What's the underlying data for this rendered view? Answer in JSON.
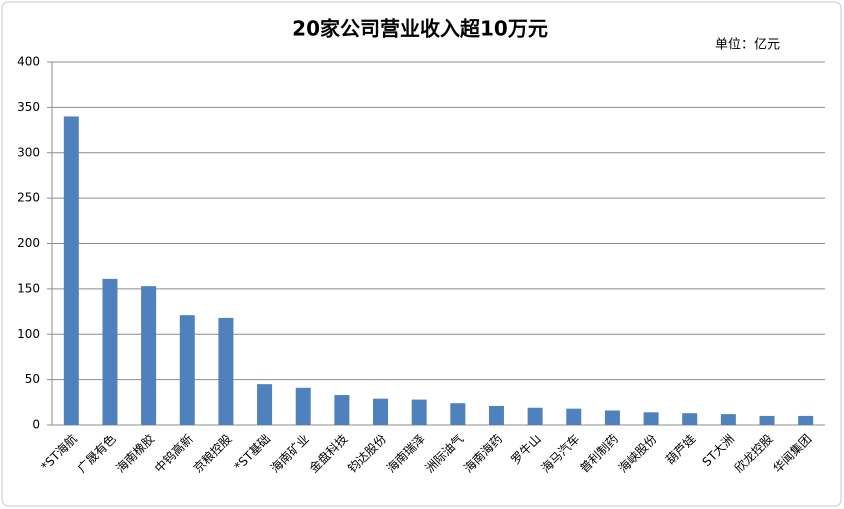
{
  "chart_data": {
    "type": "bar",
    "title": "20家公司营业收入超10万元",
    "unit_label": "单位：亿元",
    "categories": [
      "*ST海航",
      "广晟有色",
      "海南橡胶",
      "中钨高新",
      "京粮控股",
      "*ST基础",
      "海南矿业",
      "金盘科技",
      "钧达股份",
      "海南瑞泽",
      "洲际油气",
      "海南海药",
      "罗牛山",
      "海马汽车",
      "普利制药",
      "海峡股份",
      "葫芦娃",
      "ST大洲",
      "欣龙控股",
      "华闻集团"
    ],
    "values": [
      340,
      161,
      153,
      121,
      118,
      45,
      41,
      33,
      29,
      28,
      24,
      21,
      19,
      18,
      16,
      14,
      13,
      12,
      10,
      10
    ],
    "color": "#4f81bd",
    "ylim": [
      0,
      400
    ],
    "yticks": [
      0,
      50,
      100,
      150,
      200,
      250,
      300,
      350,
      400
    ],
    "grid": true
  }
}
